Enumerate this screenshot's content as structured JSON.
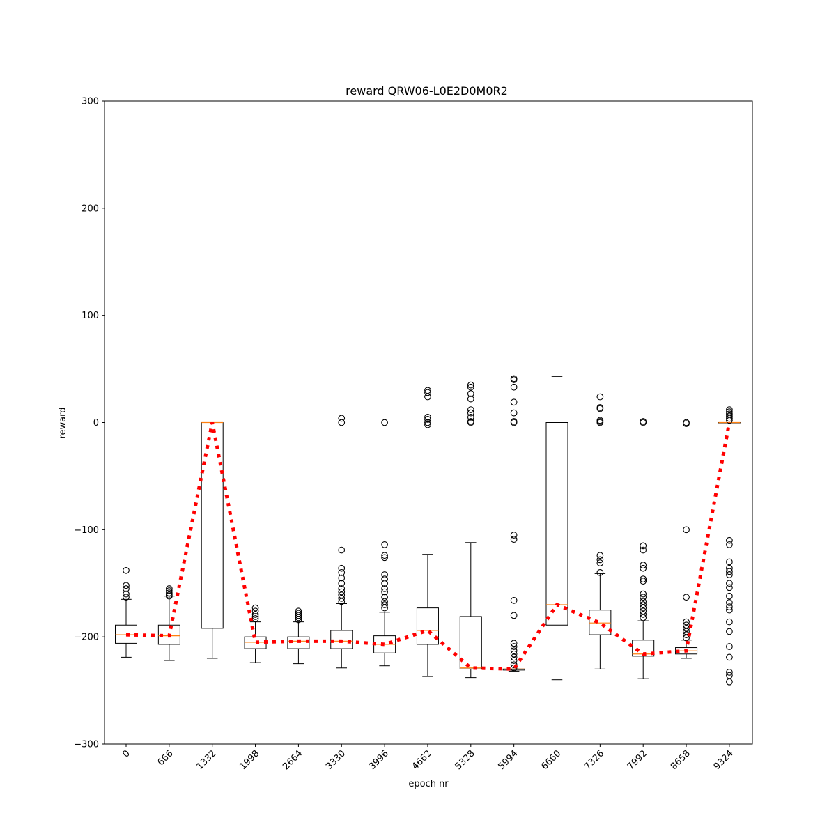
{
  "chart_data": {
    "type": "box",
    "title": "reward QRW06-L0E2D0M0R2",
    "xlabel": "epoch nr",
    "ylabel": "reward",
    "ylim": [
      -300,
      300
    ],
    "yticks": [
      300,
      200,
      100,
      0,
      -100,
      -200,
      -300
    ],
    "ytick_labels": [
      "300",
      "200",
      "100",
      "0",
      "−100",
      "−200",
      "−300"
    ],
    "grid": false,
    "colors": {
      "box": "#000000",
      "median": "#ff7f0e",
      "mean_line": "#ff0000"
    },
    "categories": [
      "0",
      "666",
      "1332",
      "1998",
      "2664",
      "3330",
      "3996",
      "4662",
      "5328",
      "5994",
      "6660",
      "7326",
      "7992",
      "8658",
      "9324"
    ],
    "boxes": [
      {
        "q1": -206,
        "median": -198,
        "q3": -189,
        "whislo": -219,
        "whishi": -165,
        "mean": -198,
        "fliers": [
          -138,
          -152,
          -155,
          -160,
          -163
        ]
      },
      {
        "q1": -207,
        "median": -199,
        "q3": -189,
        "whislo": -222,
        "whishi": -162,
        "mean": -199,
        "fliers": [
          -155,
          -157,
          -159,
          -161,
          -162
        ]
      },
      {
        "q1": -192,
        "median": 0,
        "q3": 0,
        "whislo": -220,
        "whishi": 0,
        "mean": 0,
        "fliers": []
      },
      {
        "q1": -211,
        "median": -205,
        "q3": -200,
        "whislo": -224,
        "whishi": -186,
        "mean": -205,
        "fliers": [
          -173,
          -176,
          -179,
          -181,
          -183
        ]
      },
      {
        "q1": -211,
        "median": -204,
        "q3": -200,
        "whislo": -225,
        "whishi": -186,
        "mean": -204,
        "fliers": [
          -176,
          -178,
          -180,
          -182,
          -184
        ]
      },
      {
        "q1": -211,
        "median": -204,
        "q3": -194,
        "whislo": -229,
        "whishi": -169,
        "mean": -204,
        "fliers": [
          4,
          0,
          -119,
          -136,
          -140,
          -145,
          -150,
          -155,
          -158,
          -161,
          -164,
          -167
        ]
      },
      {
        "q1": -215,
        "median": -207,
        "q3": -199,
        "whislo": -227,
        "whishi": -177,
        "mean": -207,
        "fliers": [
          0,
          -114,
          -124,
          -126,
          -142,
          -146,
          -150,
          -155,
          -158,
          -163,
          -167,
          -170,
          -173
        ]
      },
      {
        "q1": -207,
        "median": -194,
        "q3": -173,
        "whislo": -237,
        "whishi": -123,
        "mean": -194,
        "fliers": [
          30,
          28,
          24,
          5,
          3,
          0,
          -2
        ]
      },
      {
        "q1": -230,
        "median": -229,
        "q3": -181,
        "whislo": -238,
        "whishi": -112,
        "mean": -229,
        "fliers": [
          35,
          33,
          27,
          22,
          12,
          9,
          5,
          1,
          0
        ]
      },
      {
        "q1": -231,
        "median": -230,
        "q3": -230,
        "whislo": -232,
        "whishi": -230,
        "mean": -230,
        "fliers": [
          41,
          40,
          33,
          19,
          9,
          1,
          0,
          -105,
          -109,
          -166,
          -180,
          -206,
          -209,
          -213,
          -216,
          -219,
          -222,
          -226,
          -229
        ]
      },
      {
        "q1": -189,
        "median": -170,
        "q3": 0,
        "whislo": -240,
        "whishi": 43,
        "mean": -170,
        "fliers": []
      },
      {
        "q1": -198,
        "median": -187,
        "q3": -175,
        "whislo": -230,
        "whishi": -141,
        "mean": -187,
        "fliers": [
          24,
          14,
          13,
          2,
          1,
          0,
          -124,
          -128,
          -131,
          -140
        ]
      },
      {
        "q1": -218,
        "median": -216,
        "q3": -203,
        "whislo": -239,
        "whishi": -185,
        "mean": -216,
        "fliers": [
          0,
          1,
          -115,
          -119,
          -133,
          -136,
          -146,
          -148,
          -160,
          -163,
          -167,
          -170,
          -173,
          -176,
          -179,
          -182
        ]
      },
      {
        "q1": -216,
        "median": -213,
        "q3": -210,
        "whislo": -220,
        "whishi": -203,
        "mean": -213,
        "fliers": [
          0,
          -1,
          -100,
          -163,
          -186,
          -189,
          -192,
          -195,
          -198,
          -201
        ]
      },
      {
        "q1": 0,
        "median": 0,
        "q3": 0,
        "whislo": 0,
        "whishi": 0,
        "mean": 0,
        "fliers": [
          12,
          10,
          8,
          6,
          4,
          2,
          -110,
          -114,
          -130,
          -136,
          -139,
          -142,
          -150,
          -154,
          -162,
          -168,
          -172,
          -175,
          -186,
          -195,
          -209,
          -219,
          -233,
          -236,
          -242
        ]
      }
    ]
  }
}
